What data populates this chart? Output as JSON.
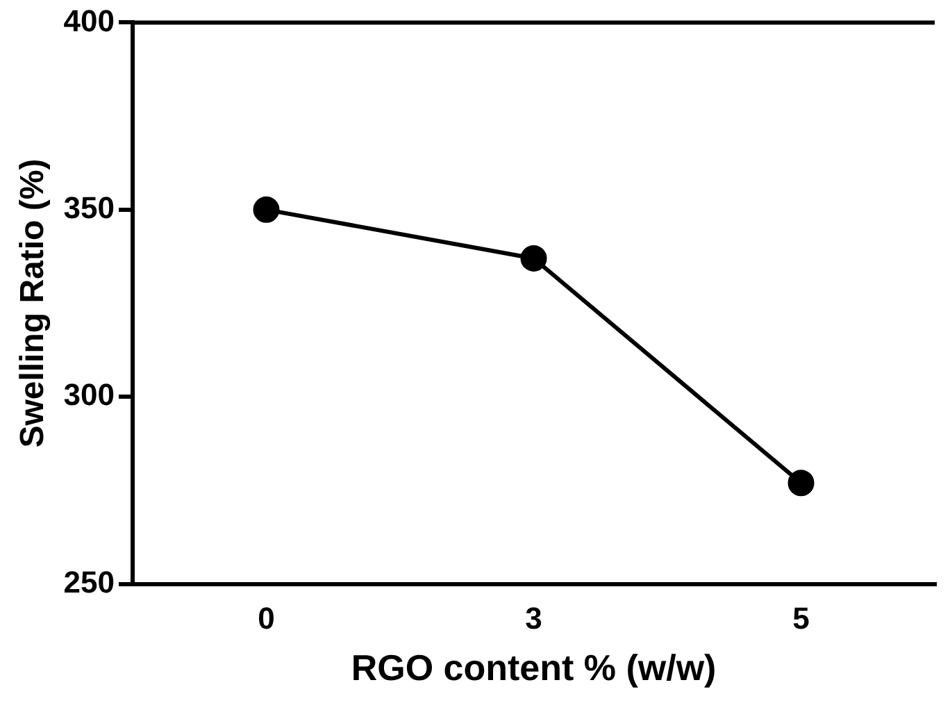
{
  "chart_data": {
    "type": "line",
    "xlabel": "RGO content % (w/w)",
    "ylabel": "Swelling Ratio (%)",
    "categories": [
      "0",
      "3",
      "5"
    ],
    "series": [
      {
        "color": "#000000",
        "values": [
          350,
          337,
          277
        ]
      }
    ],
    "ylim": [
      250,
      400
    ],
    "yticks": [
      250,
      300,
      350,
      400
    ],
    "grid": false,
    "legend": false,
    "marker": "circle",
    "line_style": "solid"
  }
}
